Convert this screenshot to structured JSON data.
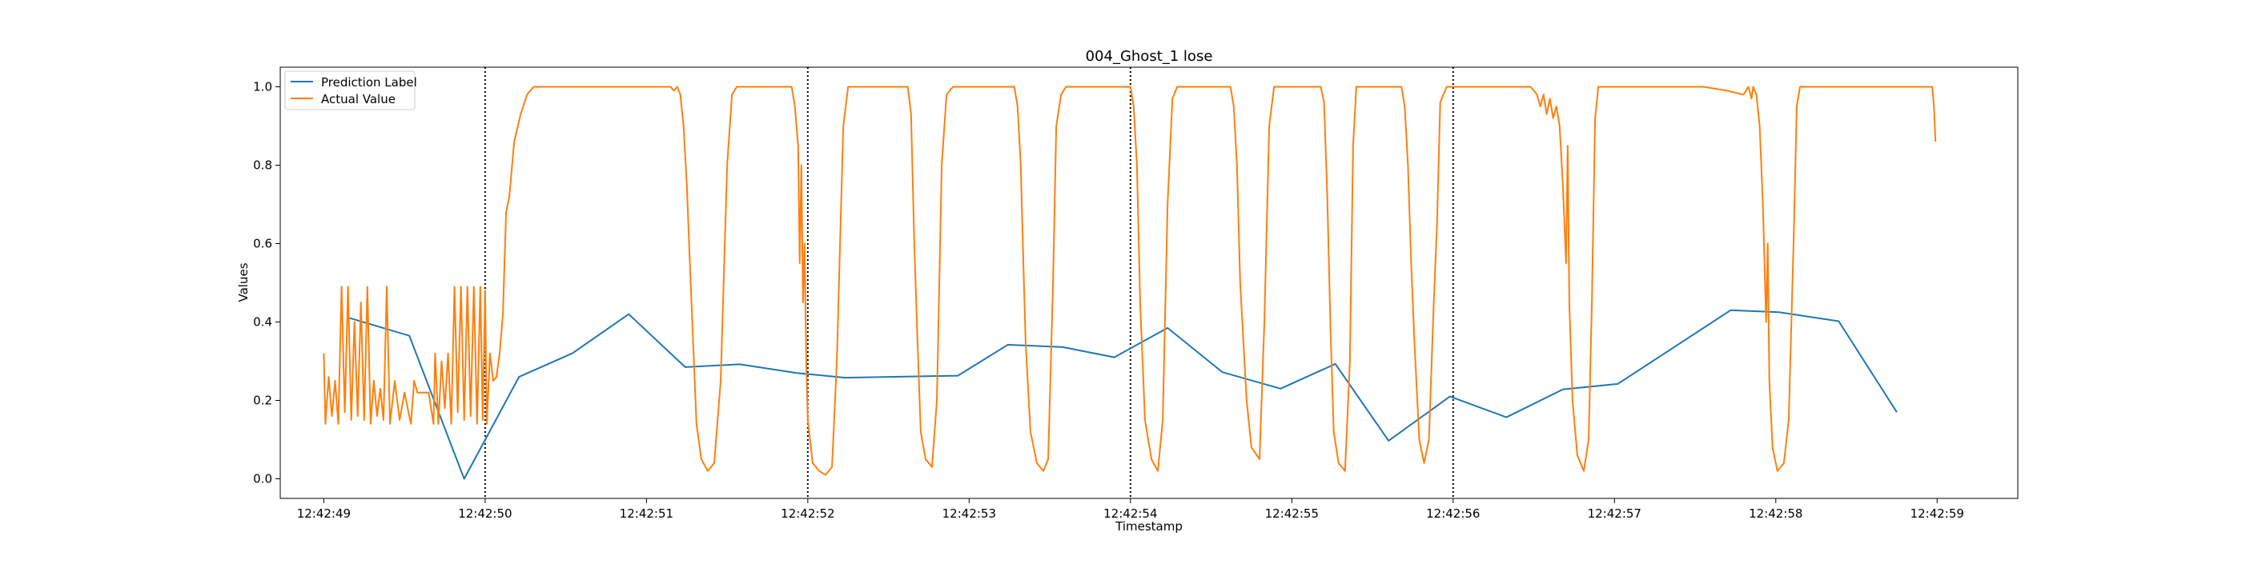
{
  "chart_data": {
    "type": "line",
    "title": "004_Ghost_1 lose",
    "xlabel": "Timestamp",
    "ylabel": "Values",
    "xlim": [
      "12:42:48.730",
      "12:42:59.500"
    ],
    "ylim": [
      -0.05,
      1.05
    ],
    "x_ticks": [
      "12:42:49",
      "12:42:50",
      "12:42:51",
      "12:42:52",
      "12:42:53",
      "12:42:54",
      "12:42:55",
      "12:42:56",
      "12:42:57",
      "12:42:58",
      "12:42:59"
    ],
    "y_ticks": [
      "0.0",
      "0.2",
      "0.4",
      "0.6",
      "0.8",
      "1.0"
    ],
    "vlines": [
      "12:42:50",
      "12:42:52",
      "12:42:54",
      "12:42:56"
    ],
    "legend_position": "upper-left",
    "series": [
      {
        "name": "Prediction Label",
        "color": "#1f77b4",
        "points": [
          [
            "12:42:49.160",
            0.41
          ],
          [
            "12:42:49.530",
            0.365
          ],
          [
            "12:42:49.870",
            0.0
          ],
          [
            "12:42:50.210",
            0.26
          ],
          [
            "12:42:50.540",
            0.32
          ],
          [
            "12:42:50.890",
            0.42
          ],
          [
            "12:42:51.240",
            0.285
          ],
          [
            "12:42:51.580",
            0.292
          ],
          [
            "12:42:51.930",
            0.27
          ],
          [
            "12:42:52.230",
            0.258
          ],
          [
            "12:42:52.930",
            0.263
          ],
          [
            "12:42:53.240",
            0.342
          ],
          [
            "12:42:53.580",
            0.336
          ],
          [
            "12:42:53.900",
            0.31
          ],
          [
            "12:42:54.230",
            0.385
          ],
          [
            "12:42:54.570",
            0.272
          ],
          [
            "12:42:54.930",
            0.23
          ],
          [
            "12:42:55.270",
            0.293
          ],
          [
            "12:42:55.600",
            0.097
          ],
          [
            "12:42:55.980",
            0.21
          ],
          [
            "12:42:56.330",
            0.157
          ],
          [
            "12:42:56.680",
            0.228
          ],
          [
            "12:42:57.020",
            0.242
          ],
          [
            "12:42:57.720",
            0.43
          ],
          [
            "12:42:58.020",
            0.425
          ],
          [
            "12:42:58.390",
            0.402
          ],
          [
            "12:42:58.750",
            0.17
          ]
        ]
      },
      {
        "name": "Actual Value",
        "color": "#ff7f0e",
        "points": [
          [
            "12:42:49.000",
            0.32
          ],
          [
            "12:42:49.010",
            0.14
          ],
          [
            "12:42:49.030",
            0.26
          ],
          [
            "12:42:49.050",
            0.16
          ],
          [
            "12:42:49.070",
            0.25
          ],
          [
            "12:42:49.090",
            0.14
          ],
          [
            "12:42:49.110",
            0.49
          ],
          [
            "12:42:49.130",
            0.17
          ],
          [
            "12:42:49.150",
            0.49
          ],
          [
            "12:42:49.170",
            0.15
          ],
          [
            "12:42:49.190",
            0.4
          ],
          [
            "12:42:49.210",
            0.16
          ],
          [
            "12:42:49.230",
            0.45
          ],
          [
            "12:42:49.250",
            0.15
          ],
          [
            "12:42:49.270",
            0.49
          ],
          [
            "12:42:49.290",
            0.14
          ],
          [
            "12:42:49.310",
            0.25
          ],
          [
            "12:42:49.330",
            0.16
          ],
          [
            "12:42:49.350",
            0.23
          ],
          [
            "12:42:49.370",
            0.15
          ],
          [
            "12:42:49.390",
            0.49
          ],
          [
            "12:42:49.410",
            0.14
          ],
          [
            "12:42:49.440",
            0.25
          ],
          [
            "12:42:49.470",
            0.15
          ],
          [
            "12:42:49.500",
            0.22
          ],
          [
            "12:42:49.540",
            0.14
          ],
          [
            "12:42:49.560",
            0.25
          ],
          [
            "12:42:49.580",
            0.22
          ],
          [
            "12:42:49.620",
            0.22
          ],
          [
            "12:42:49.650",
            0.22
          ],
          [
            "12:42:49.680",
            0.14
          ],
          [
            "12:42:49.690",
            0.32
          ],
          [
            "12:42:49.710",
            0.14
          ],
          [
            "12:42:49.730",
            0.3
          ],
          [
            "12:42:49.750",
            0.18
          ],
          [
            "12:42:49.770",
            0.32
          ],
          [
            "12:42:49.790",
            0.14
          ],
          [
            "12:42:49.810",
            0.49
          ],
          [
            "12:42:49.830",
            0.17
          ],
          [
            "12:42:49.850",
            0.49
          ],
          [
            "12:42:49.870",
            0.15
          ],
          [
            "12:42:49.890",
            0.49
          ],
          [
            "12:42:49.910",
            0.16
          ],
          [
            "12:42:49.930",
            0.49
          ],
          [
            "12:42:49.950",
            0.14
          ],
          [
            "12:42:49.970",
            0.49
          ],
          [
            "12:42:49.985",
            0.15
          ],
          [
            "12:42:50.000",
            0.48
          ],
          [
            "12:42:50.010",
            0.14
          ],
          [
            "12:42:50.030",
            0.32
          ],
          [
            "12:42:50.050",
            0.25
          ],
          [
            "12:42:50.070",
            0.26
          ],
          [
            "12:42:50.090",
            0.32
          ],
          [
            "12:42:50.110",
            0.42
          ],
          [
            "12:42:50.130",
            0.68
          ],
          [
            "12:42:50.150",
            0.72
          ],
          [
            "12:42:50.180",
            0.86
          ],
          [
            "12:42:50.220",
            0.93
          ],
          [
            "12:42:50.260",
            0.98
          ],
          [
            "12:42:50.300",
            1.0
          ],
          [
            "12:42:51.150",
            1.0
          ],
          [
            "12:42:51.170",
            0.99
          ],
          [
            "12:42:51.190",
            1.0
          ],
          [
            "12:42:51.210",
            0.98
          ],
          [
            "12:42:51.230",
            0.9
          ],
          [
            "12:42:51.250",
            0.75
          ],
          [
            "12:42:51.270",
            0.54
          ],
          [
            "12:42:51.290",
            0.34
          ],
          [
            "12:42:51.310",
            0.14
          ],
          [
            "12:42:51.340",
            0.05
          ],
          [
            "12:42:51.380",
            0.02
          ],
          [
            "12:42:51.420",
            0.04
          ],
          [
            "12:42:51.460",
            0.25
          ],
          [
            "12:42:51.500",
            0.8
          ],
          [
            "12:42:51.530",
            0.98
          ],
          [
            "12:42:51.560",
            1.0
          ],
          [
            "12:42:51.900",
            1.0
          ],
          [
            "12:42:51.920",
            0.95
          ],
          [
            "12:42:51.940",
            0.85
          ],
          [
            "12:42:51.950",
            0.55
          ],
          [
            "12:42:51.960",
            0.8
          ],
          [
            "12:42:51.970",
            0.45
          ],
          [
            "12:42:51.980",
            0.6
          ],
          [
            "12:42:51.990",
            0.3
          ],
          [
            "12:42:52.000",
            0.15
          ],
          [
            "12:42:52.030",
            0.04
          ],
          [
            "12:42:52.070",
            0.02
          ],
          [
            "12:42:52.110",
            0.01
          ],
          [
            "12:42:52.150",
            0.03
          ],
          [
            "12:42:52.180",
            0.3
          ],
          [
            "12:42:52.220",
            0.9
          ],
          [
            "12:42:52.250",
            1.0
          ],
          [
            "12:42:52.620",
            1.0
          ],
          [
            "12:42:52.640",
            0.93
          ],
          [
            "12:42:52.660",
            0.6
          ],
          [
            "12:42:52.680",
            0.35
          ],
          [
            "12:42:52.700",
            0.12
          ],
          [
            "12:42:52.730",
            0.05
          ],
          [
            "12:42:52.770",
            0.03
          ],
          [
            "12:42:52.800",
            0.2
          ],
          [
            "12:42:52.830",
            0.8
          ],
          [
            "12:42:52.860",
            0.98
          ],
          [
            "12:42:52.900",
            1.0
          ],
          [
            "12:42:53.280",
            1.0
          ],
          [
            "12:42:53.300",
            0.95
          ],
          [
            "12:42:53.320",
            0.8
          ],
          [
            "12:42:53.330",
            0.64
          ],
          [
            "12:42:53.350",
            0.35
          ],
          [
            "12:42:53.380",
            0.12
          ],
          [
            "12:42:53.420",
            0.04
          ],
          [
            "12:42:53.460",
            0.02
          ],
          [
            "12:42:53.490",
            0.05
          ],
          [
            "12:42:53.520",
            0.5
          ],
          [
            "12:42:53.540",
            0.9
          ],
          [
            "12:42:53.570",
            0.98
          ],
          [
            "12:42:53.600",
            1.0
          ],
          [
            "12:42:54.000",
            1.0
          ],
          [
            "12:42:54.020",
            0.95
          ],
          [
            "12:42:54.040",
            0.8
          ],
          [
            "12:42:54.060",
            0.45
          ],
          [
            "12:42:54.090",
            0.15
          ],
          [
            "12:42:54.130",
            0.05
          ],
          [
            "12:42:54.170",
            0.02
          ],
          [
            "12:42:54.200",
            0.15
          ],
          [
            "12:42:54.230",
            0.7
          ],
          [
            "12:42:54.260",
            0.97
          ],
          [
            "12:42:54.290",
            1.0
          ],
          [
            "12:42:54.620",
            1.0
          ],
          [
            "12:42:54.640",
            0.95
          ],
          [
            "12:42:54.660",
            0.8
          ],
          [
            "12:42:54.680",
            0.5
          ],
          [
            "12:42:54.700",
            0.35
          ],
          [
            "12:42:54.720",
            0.2
          ],
          [
            "12:42:54.750",
            0.08
          ],
          [
            "12:42:54.800",
            0.05
          ],
          [
            "12:42:54.830",
            0.4
          ],
          [
            "12:42:54.860",
            0.9
          ],
          [
            "12:42:54.890",
            1.0
          ],
          [
            "12:42:55.180",
            1.0
          ],
          [
            "12:42:55.200",
            0.96
          ],
          [
            "12:42:55.220",
            0.72
          ],
          [
            "12:42:55.240",
            0.38
          ],
          [
            "12:42:55.260",
            0.12
          ],
          [
            "12:42:55.290",
            0.04
          ],
          [
            "12:42:55.330",
            0.02
          ],
          [
            "12:42:55.360",
            0.3
          ],
          [
            "12:42:55.380",
            0.85
          ],
          [
            "12:42:55.400",
            1.0
          ],
          [
            "12:42:55.680",
            1.0
          ],
          [
            "12:42:55.700",
            0.95
          ],
          [
            "12:42:55.720",
            0.8
          ],
          [
            "12:42:55.740",
            0.55
          ],
          [
            "12:42:55.760",
            0.35
          ],
          [
            "12:42:55.790",
            0.1
          ],
          [
            "12:42:55.820",
            0.04
          ],
          [
            "12:42:55.850",
            0.1
          ],
          [
            "12:42:55.880",
            0.45
          ],
          [
            "12:42:55.900",
            0.65
          ],
          [
            "12:42:55.920",
            0.96
          ],
          [
            "12:42:55.940",
            0.98
          ],
          [
            "12:42:55.960",
            1.0
          ],
          [
            "12:42:56.480",
            1.0
          ],
          [
            "12:42:56.520",
            0.98
          ],
          [
            "12:42:56.540",
            0.95
          ],
          [
            "12:42:56.560",
            0.98
          ],
          [
            "12:42:56.580",
            0.93
          ],
          [
            "12:42:56.600",
            0.97
          ],
          [
            "12:42:56.620",
            0.92
          ],
          [
            "12:42:56.640",
            0.95
          ],
          [
            "12:42:56.660",
            0.9
          ],
          [
            "12:42:56.680",
            0.75
          ],
          [
            "12:42:56.700",
            0.55
          ],
          [
            "12:42:56.710",
            0.85
          ],
          [
            "12:42:56.720",
            0.45
          ],
          [
            "12:42:56.740",
            0.2
          ],
          [
            "12:42:56.770",
            0.06
          ],
          [
            "12:42:56.810",
            0.02
          ],
          [
            "12:42:56.840",
            0.1
          ],
          [
            "12:42:56.860",
            0.45
          ],
          [
            "12:42:56.880",
            0.92
          ],
          [
            "12:42:56.900",
            1.0
          ],
          [
            "12:42:57.550",
            1.0
          ],
          [
            "12:42:57.700",
            0.99
          ],
          [
            "12:42:57.800",
            0.98
          ],
          [
            "12:42:57.830",
            1.0
          ],
          [
            "12:42:57.850",
            0.97
          ],
          [
            "12:42:57.860",
            1.0
          ],
          [
            "12:42:57.880",
            0.98
          ],
          [
            "12:42:57.900",
            0.9
          ],
          [
            "12:42:57.920",
            0.7
          ],
          [
            "12:42:57.940",
            0.4
          ],
          [
            "12:42:57.950",
            0.6
          ],
          [
            "12:42:57.960",
            0.25
          ],
          [
            "12:42:57.980",
            0.08
          ],
          [
            "12:42:58.010",
            0.02
          ],
          [
            "12:42:58.050",
            0.04
          ],
          [
            "12:42:58.080",
            0.15
          ],
          [
            "12:42:58.110",
            0.6
          ],
          [
            "12:42:58.130",
            0.95
          ],
          [
            "12:42:58.150",
            1.0
          ],
          [
            "12:42:58.970",
            1.0
          ],
          [
            "12:42:58.980",
            0.95
          ],
          [
            "12:42:58.990",
            0.86
          ]
        ]
      }
    ]
  }
}
